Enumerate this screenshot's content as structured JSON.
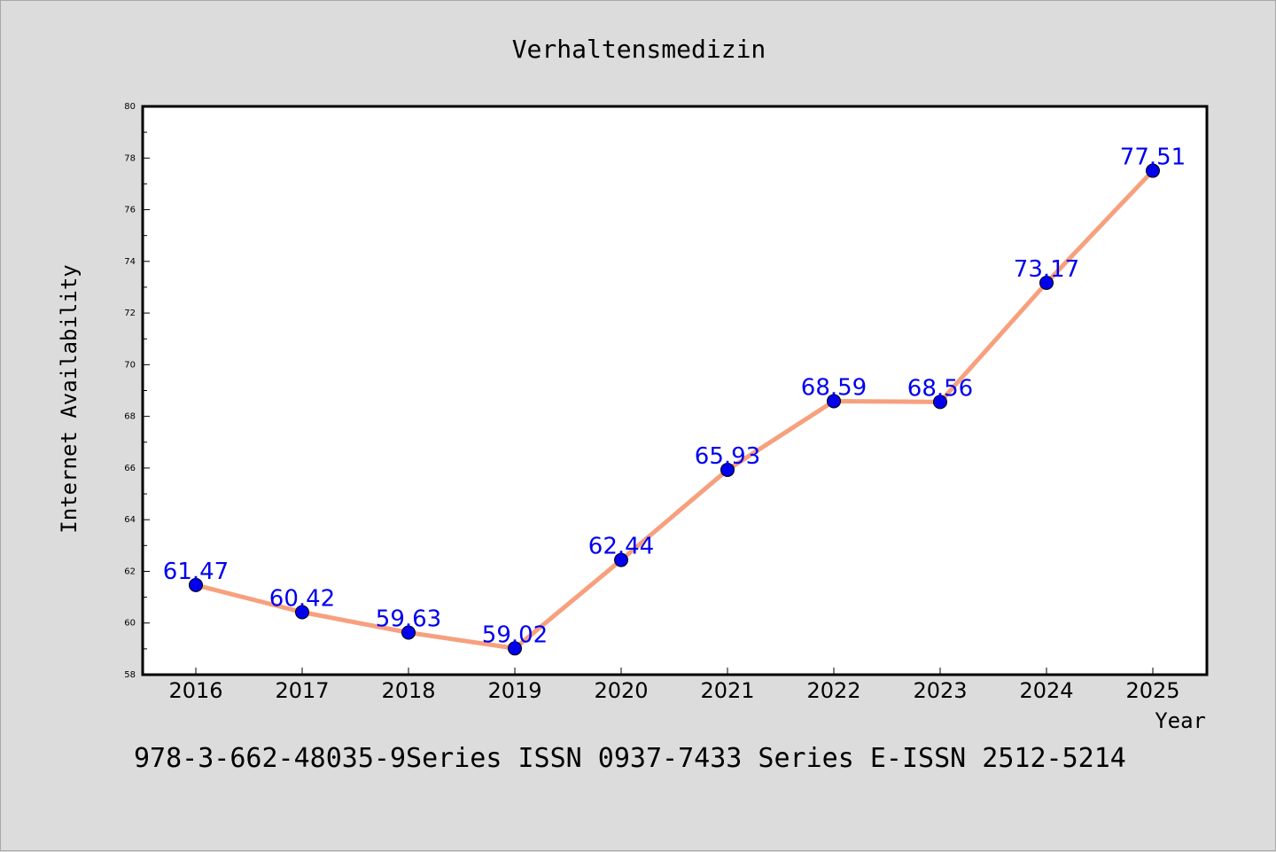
{
  "chart_data": {
    "type": "line",
    "title": "Verhaltensmedizin",
    "xlabel": "Year",
    "ylabel": "Internet Availability",
    "x": [
      "2016",
      "2017",
      "2018",
      "2019",
      "2020",
      "2021",
      "2022",
      "2023",
      "2024",
      "2025"
    ],
    "series": [
      {
        "values": [
          61.47,
          60.42,
          59.63,
          59.02,
          62.44,
          65.93,
          68.59,
          68.56,
          73.17,
          77.51
        ],
        "data_labels": [
          "61.47",
          "60.42",
          "59.63",
          "59.02",
          "62.44",
          "65.93",
          "68.59",
          "68.56",
          "73.17",
          "77.51"
        ],
        "line_color": "#f7a07e",
        "marker_color": "#0000ee"
      }
    ],
    "ylim": [
      58,
      80
    ],
    "yticks": [
      "58",
      "60",
      "62",
      "64",
      "66",
      "68",
      "70",
      "72",
      "74",
      "76",
      "78",
      "80"
    ],
    "grid": false,
    "legend": "none",
    "label_color": "#0000ee"
  },
  "footer_text": "978-3-662-48035-9Series ISSN 0937-7433 Series E-ISSN 2512-5214"
}
